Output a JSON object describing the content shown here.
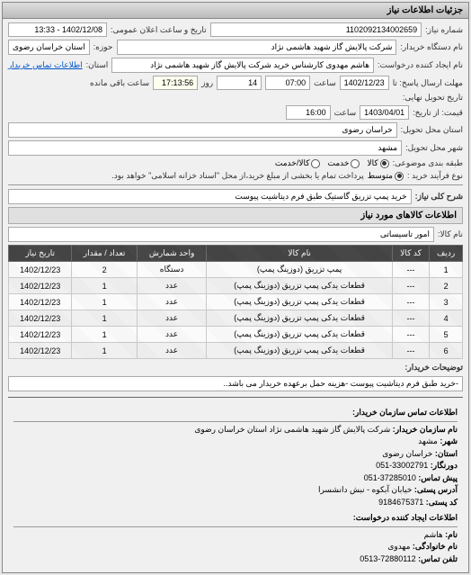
{
  "panel_title": "جزئیات اطلاعات نیاز",
  "fields": {
    "req_no_lbl": "شماره نیاز:",
    "req_no": "1102092134002659",
    "announce_lbl": "تاریخ و ساعت اعلان عمومی:",
    "announce": "1402/12/08 - 13:33",
    "buyer_org_lbl": "نام دستگاه خریدار:",
    "buyer_org": "شرکت پالایش گاز شهید هاشمی نژاد",
    "province_lbl": "حوزه:",
    "province": "استان خراسان رضوی",
    "requester_lbl": "نام ایجاد کننده درخواست:",
    "requester": "هاشم مهدوی کارشناس خرید شرکت پالایش گاز شهید هاشمی نژاد",
    "province2_lbl": "استان:",
    "province2": "",
    "contact_link": "اطلاعات تماس خریدار",
    "deadline_lbl": "مهلت ارسال پاسخ: تا",
    "deadline_date": "1402/12/23",
    "time_lbl": "ساعت",
    "deadline_time": "07:00",
    "days_lbl": "روز",
    "days": "14",
    "remain_lbl": "ساعت باقی مانده",
    "remain": "17:13:56",
    "delivery_lbl": "تاریخ تحویل نهایی:",
    "from_lbl": "قیمت: از تاریخ:",
    "delivery_date": "1403/04/01",
    "delivery_time": "16:00",
    "loc_lbl": "استان محل تحویل:",
    "loc": "خراسان رضوی",
    "city_lbl": "شهر محل تحویل:",
    "city": "مشهد",
    "subject_cls_lbl": "طبقه بندی موضوعی:",
    "r_kala": "کالا",
    "r_khedmat": "خدمت",
    "r_kalakhedmat": "کالا/خدمت",
    "buy_type_lbl": "نوع فرآیند خرید :",
    "r_medium": "متوسط",
    "pay_note": "پرداخت تمام یا بخشی از مبلغ خرید،از محل \"اسناد خزانه اسلامی\" خواهد بود.",
    "desc_lbl": "شرح کلی نیاز:",
    "desc": "خرید پمپ تزریق گاستیک طبق فرم دیتاشیت پیوست",
    "goods_title": "اطلاعات کالاهای مورد نیاز",
    "goods_name_lbl": "نام کالا:",
    "goods_name": "امور تاسیساتی",
    "buyer_notes_lbl": "توضیحات خریدار:",
    "buyer_notes": "-خرید طبق فرم دیتاشیت پیوست -هزینه حمل برعهده خریدار می باشد.."
  },
  "table": {
    "headers": [
      "ردیف",
      "کد کالا",
      "نام کالا",
      "واحد شمارش",
      "تعداد / مقدار",
      "تاریخ نیاز"
    ],
    "rows": [
      [
        "1",
        "---",
        "پمپ تزریق (دوزینگ پمپ)",
        "دستگاه",
        "2",
        "1402/12/23"
      ],
      [
        "2",
        "---",
        "قطعات یدکی پمپ تزریق (دوزینگ پمپ)",
        "عدد",
        "1",
        "1402/12/23"
      ],
      [
        "3",
        "---",
        "قطعات یدکی پمپ تزریق (دوزینگ پمپ)",
        "عدد",
        "1",
        "1402/12/23"
      ],
      [
        "4",
        "---",
        "قطعات یدکی پمپ تزریق (دوزینگ پمپ)",
        "عدد",
        "1",
        "1402/12/23"
      ],
      [
        "5",
        "---",
        "قطعات یدکی پمپ تزریق (دوزینگ پمپ)",
        "عدد",
        "1",
        "1402/12/23"
      ],
      [
        "6",
        "---",
        "قطعات یدکی پمپ تزریق (دوزینگ پمپ)",
        "عدد",
        "1",
        "1402/12/23"
      ]
    ]
  },
  "contact": {
    "title1": "اطلاعات تماس سازمان خریدار:",
    "org_lbl": "نام سازمان خریدار:",
    "org": "شرکت پالایش گاز شهید هاشمی نژاد استان خراسان رضوی",
    "city_lbl": "شهر:",
    "city": "مشهد",
    "prov_lbl": "استان:",
    "prov": "خراسان رضوی",
    "fax_lbl": "دورنگار:",
    "fax": "33002791-051",
    "tel_lbl": "پیش تماس:",
    "tel": "37285010-051",
    "addr_lbl": "آدرس پستی:",
    "addr": "خیابان آبکوه - نبش دانشسرا",
    "post_lbl": "کد پستی:",
    "post": "9184675371",
    "title2": "اطلاعات ایجاد کننده درخواست:",
    "name_lbl": "نام:",
    "name": "هاشم",
    "lname_lbl": "نام خانوادگی:",
    "lname": "مهدوی",
    "ctel_lbl": "تلفن تماس:",
    "ctel": "72880112-0513"
  }
}
